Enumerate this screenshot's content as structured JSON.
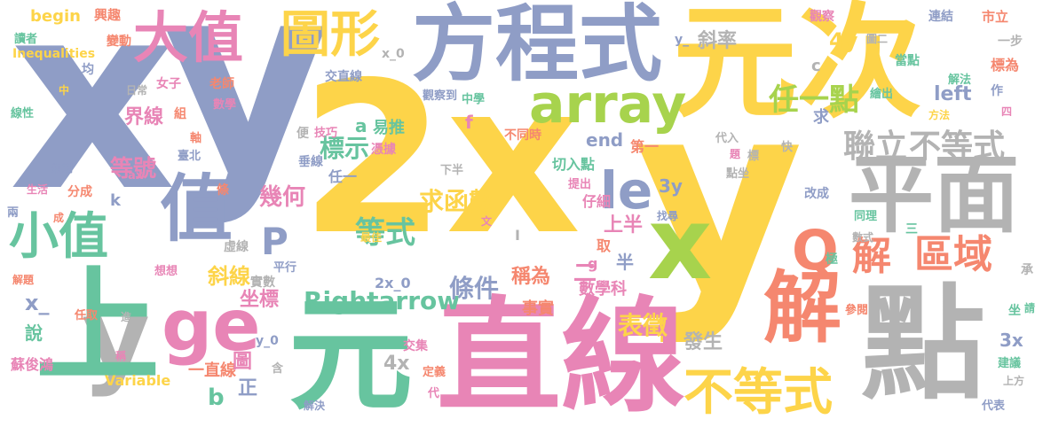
{
  "palette": [
    "#8F9DC6",
    "#FDD449",
    "#E885B6",
    "#67C49F",
    "#A7D34D",
    "#F5876F",
    "#B3B3B3"
  ],
  "words": [
    {
      "text": "2x",
      "color": "#FDD449"
    },
    {
      "text": "y",
      "color": "#FDD449"
    },
    {
      "text": "x",
      "color": "#8F9DC6"
    },
    {
      "text": "y",
      "color": "#8F9DC6"
    },
    {
      "text": "元次",
      "color": "#FDD449"
    },
    {
      "text": "方程式",
      "color": "#8F9DC6"
    },
    {
      "text": "直線",
      "color": "#E885B6"
    },
    {
      "text": "元",
      "color": "#67C49F"
    },
    {
      "text": "平面",
      "color": "#B3B3B3"
    },
    {
      "text": "點",
      "color": "#B3B3B3"
    },
    {
      "text": "x",
      "color": "#A7D34D"
    },
    {
      "text": "大值",
      "color": "#E885B6"
    },
    {
      "text": "值",
      "color": "#8F9DC6"
    },
    {
      "text": "ge",
      "color": "#E885B6"
    },
    {
      "text": "y",
      "color": "#B3B3B3"
    },
    {
      "text": "上",
      "color": "#67C49F"
    },
    {
      "text": "解",
      "color": "#F5876F"
    },
    {
      "text": "小值",
      "color": "#67C49F"
    },
    {
      "text": "圖形",
      "color": "#FDD449"
    },
    {
      "text": "array",
      "color": "#A7D34D"
    },
    {
      "text": "不等式",
      "color": "#FDD449"
    },
    {
      "text": "Q",
      "color": "#F5876F"
    },
    {
      "text": "le",
      "color": "#8F9DC6"
    },
    {
      "text": "解",
      "color": "#F5876F"
    },
    {
      "text": "區域",
      "color": "#F5876F"
    },
    {
      "text": "聯立",
      "color": "#B3B3B3"
    },
    {
      "text": "不等式",
      "color": "#B3B3B3"
    },
    {
      "text": "P",
      "color": "#8F9DC6"
    },
    {
      "text": "任一點",
      "color": "#A7D34D"
    },
    {
      "text": "Rightarrow",
      "color": "#67C49F"
    },
    {
      "text": "等式",
      "color": "#67C49F"
    },
    {
      "text": "求函數",
      "color": "#FDD449"
    },
    {
      "text": "條件",
      "color": "#8F9DC6"
    },
    {
      "text": "表徵",
      "color": "#FDD449"
    },
    {
      "text": "斜率",
      "color": "#B3B3B3"
    },
    {
      "text": "界線",
      "color": "#E885B6"
    },
    {
      "text": "等號",
      "color": "#E885B6"
    },
    {
      "text": "標示",
      "color": "#67C49F"
    },
    {
      "text": "幾何",
      "color": "#E885B6"
    },
    {
      "text": "斜線",
      "color": "#FDD449"
    },
    {
      "text": "坐標",
      "color": "#E885B6"
    },
    {
      "text": "實數",
      "color": "#B3B3B3"
    },
    {
      "text": "稱為",
      "color": "#F5876F"
    },
    {
      "text": "發生",
      "color": "#B3B3B3"
    },
    {
      "text": "4y",
      "color": "#FDD449"
    },
    {
      "text": "left",
      "color": "#8F9DC6"
    },
    {
      "text": "end",
      "color": "#8F9DC6"
    },
    {
      "text": "3y",
      "color": "#8F9DC6"
    },
    {
      "text": "上半",
      "color": "#E885B6"
    },
    {
      "text": "半",
      "color": "#8F9DC6"
    },
    {
      "text": "二",
      "color": "#E885B6"
    },
    {
      "text": "數學科",
      "color": "#E885B6"
    },
    {
      "text": "事實",
      "color": "#F5876F"
    },
    {
      "text": "2x_0",
      "color": "#8F9DC6"
    },
    {
      "text": "4x",
      "color": "#B3B3B3"
    },
    {
      "text": "3x",
      "color": "#8F9DC6"
    },
    {
      "text": "一直線",
      "color": "#F5876F"
    },
    {
      "text": "圖",
      "color": "#E885B6"
    },
    {
      "text": "正",
      "color": "#8F9DC6"
    },
    {
      "text": "b",
      "color": "#67C49F"
    },
    {
      "text": "Variable",
      "color": "#FDD449"
    },
    {
      "text": "蘇俊鴻",
      "color": "#E885B6"
    },
    {
      "text": "說",
      "color": "#67C49F"
    },
    {
      "text": "x_",
      "color": "#8F9DC6"
    },
    {
      "text": "y_0",
      "color": "#8F9DC6"
    },
    {
      "text": "交集",
      "color": "#E885B6"
    },
    {
      "text": "begin",
      "color": "#FDD449"
    },
    {
      "text": "Inequalities",
      "color": "#FDD449"
    },
    {
      "text": "讀者",
      "color": "#67C49F"
    },
    {
      "text": "興趣",
      "color": "#F5876F"
    },
    {
      "text": "變動",
      "color": "#F5876F"
    },
    {
      "text": "均",
      "color": "#8F9DC6"
    },
    {
      "text": "中",
      "color": "#FDD449"
    },
    {
      "text": "日常",
      "color": "#B3B3B3"
    },
    {
      "text": "女子",
      "color": "#E885B6"
    },
    {
      "text": "老師",
      "color": "#F5876F"
    },
    {
      "text": "交直線",
      "color": "#8F9DC6"
    },
    {
      "text": "x_0",
      "color": "#B3B3B3"
    },
    {
      "text": "y_",
      "color": "#8F9DC6"
    },
    {
      "text": "觀察",
      "color": "#E885B6"
    },
    {
      "text": "圖二",
      "color": "#B3B3B3"
    },
    {
      "text": "連結",
      "color": "#8F9DC6"
    },
    {
      "text": "市立",
      "color": "#F5876F"
    },
    {
      "text": "一步",
      "color": "#B3B3B3"
    },
    {
      "text": "當點",
      "color": "#67C49F"
    },
    {
      "text": "標為",
      "color": "#F5876F"
    },
    {
      "text": "解法",
      "color": "#67C49F"
    },
    {
      "text": "作",
      "color": "#8F9DC6"
    },
    {
      "text": "四",
      "color": "#E885B6"
    },
    {
      "text": "繪出",
      "color": "#67C49F"
    },
    {
      "text": "方法",
      "color": "#FDD449"
    },
    {
      "text": "觀察到",
      "color": "#8F9DC6"
    },
    {
      "text": "中學",
      "color": "#67C49F"
    },
    {
      "text": "不同時",
      "color": "#F5876F"
    },
    {
      "text": "易推",
      "color": "#67C49F"
    },
    {
      "text": "a",
      "color": "#67C49F"
    },
    {
      "text": "技巧",
      "color": "#E885B6"
    },
    {
      "text": "憑據",
      "color": "#E885B6"
    },
    {
      "text": "f",
      "color": "#E885B6"
    },
    {
      "text": "c",
      "color": "#B3B3B3"
    },
    {
      "text": "求",
      "color": "#8F9DC6"
    },
    {
      "text": "第一",
      "color": "#F5876F"
    },
    {
      "text": "切入點",
      "color": "#67C49F"
    },
    {
      "text": "代入",
      "color": "#B3B3B3"
    },
    {
      "text": "題",
      "color": "#E885B6"
    },
    {
      "text": "標",
      "color": "#B3B3B3"
    },
    {
      "text": "快",
      "color": "#B3B3B3"
    },
    {
      "text": "點坐",
      "color": "#B3B3B3"
    },
    {
      "text": "改成",
      "color": "#8F9DC6"
    },
    {
      "text": "同理",
      "color": "#67C49F"
    },
    {
      "text": "數式",
      "color": "#B3B3B3"
    },
    {
      "text": "三",
      "color": "#67C49F"
    },
    {
      "text": "極",
      "color": "#67C49F"
    },
    {
      "text": "承",
      "color": "#B3B3B3"
    },
    {
      "text": "參閱",
      "color": "#F5876F"
    },
    {
      "text": "坐",
      "color": "#67C49F"
    },
    {
      "text": "請",
      "color": "#67C49F"
    },
    {
      "text": "建議",
      "color": "#67C49F"
    },
    {
      "text": "上方",
      "color": "#B3B3B3"
    },
    {
      "text": "代表",
      "color": "#8F9DC6"
    },
    {
      "text": "下半",
      "color": "#B3B3B3"
    },
    {
      "text": "任一",
      "color": "#8F9DC6"
    },
    {
      "text": "垂線",
      "color": "#8F9DC6"
    },
    {
      "text": "便",
      "color": "#B3B3B3"
    },
    {
      "text": "提出",
      "color": "#E885B6"
    },
    {
      "text": "仔細",
      "color": "#E885B6"
    },
    {
      "text": "找尋",
      "color": "#8F9DC6"
    },
    {
      "text": "最佳",
      "color": "#FDD449"
    },
    {
      "text": "文",
      "color": "#E885B6"
    },
    {
      "text": "取",
      "color": "#F5876F"
    },
    {
      "text": "g",
      "color": "#E885B6"
    },
    {
      "text": "I",
      "color": "#B3B3B3"
    },
    {
      "text": "虛線",
      "color": "#B3B3B3"
    },
    {
      "text": "平行",
      "color": "#8F9DC6"
    },
    {
      "text": "想想",
      "color": "#E885B6"
    },
    {
      "text": "解題",
      "color": "#F5876F"
    },
    {
      "text": "任取",
      "color": "#F5876F"
    },
    {
      "text": "進",
      "color": "#B3B3B3"
    },
    {
      "text": "稱",
      "color": "#E885B6"
    },
    {
      "text": "含",
      "color": "#B3B3B3"
    },
    {
      "text": "定義",
      "color": "#F5876F"
    },
    {
      "text": "代",
      "color": "#E885B6"
    },
    {
      "text": "解決",
      "color": "#8F9DC6"
    },
    {
      "text": "線性",
      "color": "#67C49F"
    },
    {
      "text": "組",
      "color": "#F5876F"
    },
    {
      "text": "數學",
      "color": "#E885B6"
    },
    {
      "text": "軸",
      "color": "#F5876F"
    },
    {
      "text": "臺北",
      "color": "#8F9DC6"
    },
    {
      "text": "規劃",
      "color": "#8F9DC6"
    },
    {
      "text": "生活",
      "color": "#E885B6"
    },
    {
      "text": "分成",
      "color": "#F5876F"
    },
    {
      "text": "ax",
      "color": "#E885B6"
    },
    {
      "text": "k",
      "color": "#8F9DC6"
    },
    {
      "text": "條",
      "color": "#F5876F"
    },
    {
      "text": "兩",
      "color": "#8F9DC6"
    },
    {
      "text": "成",
      "color": "#F5876F"
    }
  ]
}
